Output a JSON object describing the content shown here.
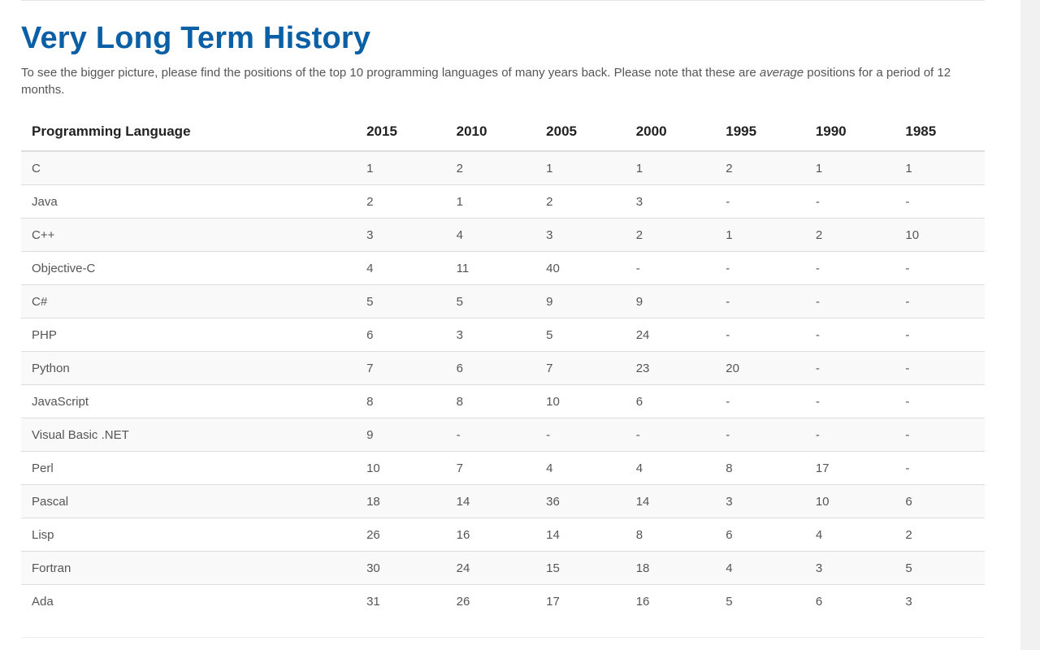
{
  "heading": "Very Long Term History",
  "intro": {
    "part1": "To see the bigger picture, please find the positions of the top 10 programming languages of many years back. Please note that these are ",
    "emphasis": "average",
    "part2": " positions for a period of 12 months."
  },
  "table": {
    "headers": [
      "Programming Language",
      "2015",
      "2010",
      "2005",
      "2000",
      "1995",
      "1990",
      "1985"
    ],
    "rows": [
      [
        "C",
        "1",
        "2",
        "1",
        "1",
        "2",
        "1",
        "1"
      ],
      [
        "Java",
        "2",
        "1",
        "2",
        "3",
        "-",
        "-",
        "-"
      ],
      [
        "C++",
        "3",
        "4",
        "3",
        "2",
        "1",
        "2",
        "10"
      ],
      [
        "Objective-C",
        "4",
        "11",
        "40",
        "-",
        "-",
        "-",
        "-"
      ],
      [
        "C#",
        "5",
        "5",
        "9",
        "9",
        "-",
        "-",
        "-"
      ],
      [
        "PHP",
        "6",
        "3",
        "5",
        "24",
        "-",
        "-",
        "-"
      ],
      [
        "Python",
        "7",
        "6",
        "7",
        "23",
        "20",
        "-",
        "-"
      ],
      [
        "JavaScript",
        "8",
        "8",
        "10",
        "6",
        "-",
        "-",
        "-"
      ],
      [
        "Visual Basic .NET",
        "9",
        "-",
        "-",
        "-",
        "-",
        "-",
        "-"
      ],
      [
        "Perl",
        "10",
        "7",
        "4",
        "4",
        "8",
        "17",
        "-"
      ],
      [
        "Pascal",
        "18",
        "14",
        "36",
        "14",
        "3",
        "10",
        "6"
      ],
      [
        "Lisp",
        "26",
        "16",
        "14",
        "8",
        "6",
        "4",
        "2"
      ],
      [
        "Fortran",
        "30",
        "24",
        "15",
        "18",
        "4",
        "3",
        "5"
      ],
      [
        "Ada",
        "31",
        "26",
        "17",
        "16",
        "5",
        "6",
        "3"
      ]
    ]
  }
}
